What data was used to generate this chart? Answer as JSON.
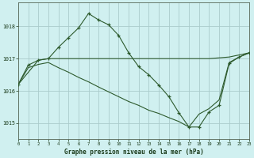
{
  "title": "Graphe pression niveau de la mer (hPa)",
  "bg_color": "#d0f0f0",
  "grid_color": "#aacccc",
  "line_color": "#2d5a2d",
  "xlim": [
    0,
    23
  ],
  "ylim": [
    1014.5,
    1018.75
  ],
  "yticks": [
    1015,
    1016,
    1017,
    1018
  ],
  "xticks": [
    0,
    1,
    2,
    3,
    4,
    5,
    6,
    7,
    8,
    9,
    10,
    11,
    12,
    13,
    14,
    15,
    16,
    17,
    18,
    19,
    20,
    21,
    22,
    23
  ],
  "line1_x": [
    0,
    1,
    2,
    3,
    4,
    5,
    6,
    7,
    8,
    9,
    10,
    11,
    12,
    13,
    14,
    15,
    16,
    17,
    18,
    19,
    20,
    21,
    22,
    23
  ],
  "line1_y": [
    1016.2,
    1016.8,
    1016.95,
    1017.0,
    1017.35,
    1017.65,
    1017.95,
    1018.4,
    1018.2,
    1018.05,
    1017.72,
    1017.18,
    1016.75,
    1016.5,
    1016.18,
    1015.82,
    1015.32,
    1014.88,
    1014.88,
    1015.35,
    1015.55,
    1016.85,
    1017.05,
    1017.18
  ],
  "line2_x": [
    0,
    2,
    3,
    10,
    19,
    21,
    23
  ],
  "line2_y": [
    1016.2,
    1016.95,
    1017.0,
    1017.0,
    1017.0,
    1017.05,
    1017.18
  ],
  "line3_x": [
    0,
    1,
    2,
    3,
    4,
    5,
    6,
    7,
    8,
    9,
    10,
    11,
    12,
    13,
    14,
    15,
    16,
    17,
    18,
    19,
    20,
    21,
    22,
    23
  ],
  "line3_y": [
    1016.2,
    1016.72,
    1016.82,
    1016.88,
    1016.72,
    1016.58,
    1016.42,
    1016.28,
    1016.12,
    1015.97,
    1015.82,
    1015.67,
    1015.55,
    1015.4,
    1015.3,
    1015.17,
    1015.05,
    1014.88,
    1015.28,
    1015.45,
    1015.72,
    1016.88,
    1017.05,
    1017.18
  ]
}
